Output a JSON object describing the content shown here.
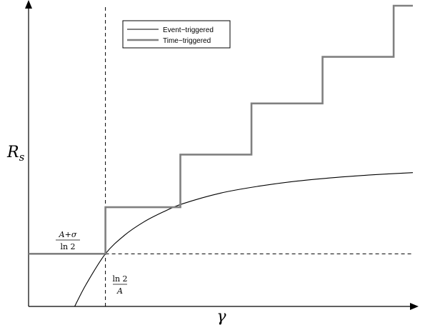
{
  "chart_data": {
    "type": "line",
    "xlabel": "γ",
    "ylabel": "R",
    "ylabel_subscript": "s",
    "grid": false,
    "ticks": "none",
    "legend": {
      "placement": "top-center",
      "entries": [
        {
          "name": "Event−triggered",
          "color": "#000000",
          "width": "thin"
        },
        {
          "name": "Time−triggered",
          "color": "#808080",
          "width": "thick"
        }
      ]
    },
    "xlim": [
      0,
      10
    ],
    "ylim": [
      0,
      10
    ],
    "annotations": {
      "threshold_x": {
        "numerator": "ln 2",
        "denominator": "A",
        "value": 2.0,
        "style": "dashed"
      },
      "threshold_y": {
        "numerator": "A+σ",
        "denominator": "ln 2",
        "value": 1.75,
        "style": "dashed"
      }
    },
    "series": [
      {
        "name": "Event−triggered",
        "color": "#000000",
        "x": [
          1.2,
          1.5,
          2.0,
          2.5,
          3.0,
          3.5,
          4.0,
          5.0,
          6.0,
          7.0,
          8.0,
          9.0,
          10.0
        ],
        "y": [
          0.0,
          0.74,
          1.75,
          2.37,
          2.81,
          3.14,
          3.41,
          3.77,
          4.0,
          4.17,
          4.29,
          4.38,
          4.45
        ]
      },
      {
        "name": "Time−triggered",
        "color": "#808080",
        "x": [
          0.0,
          2.0,
          2.0,
          3.95,
          3.95,
          5.8,
          5.8,
          7.65,
          7.65,
          9.5,
          9.5,
          10.0
        ],
        "y": [
          1.75,
          1.75,
          3.3,
          3.3,
          5.05,
          5.05,
          6.75,
          6.75,
          8.3,
          8.3,
          10.0,
          10.0
        ]
      }
    ]
  }
}
